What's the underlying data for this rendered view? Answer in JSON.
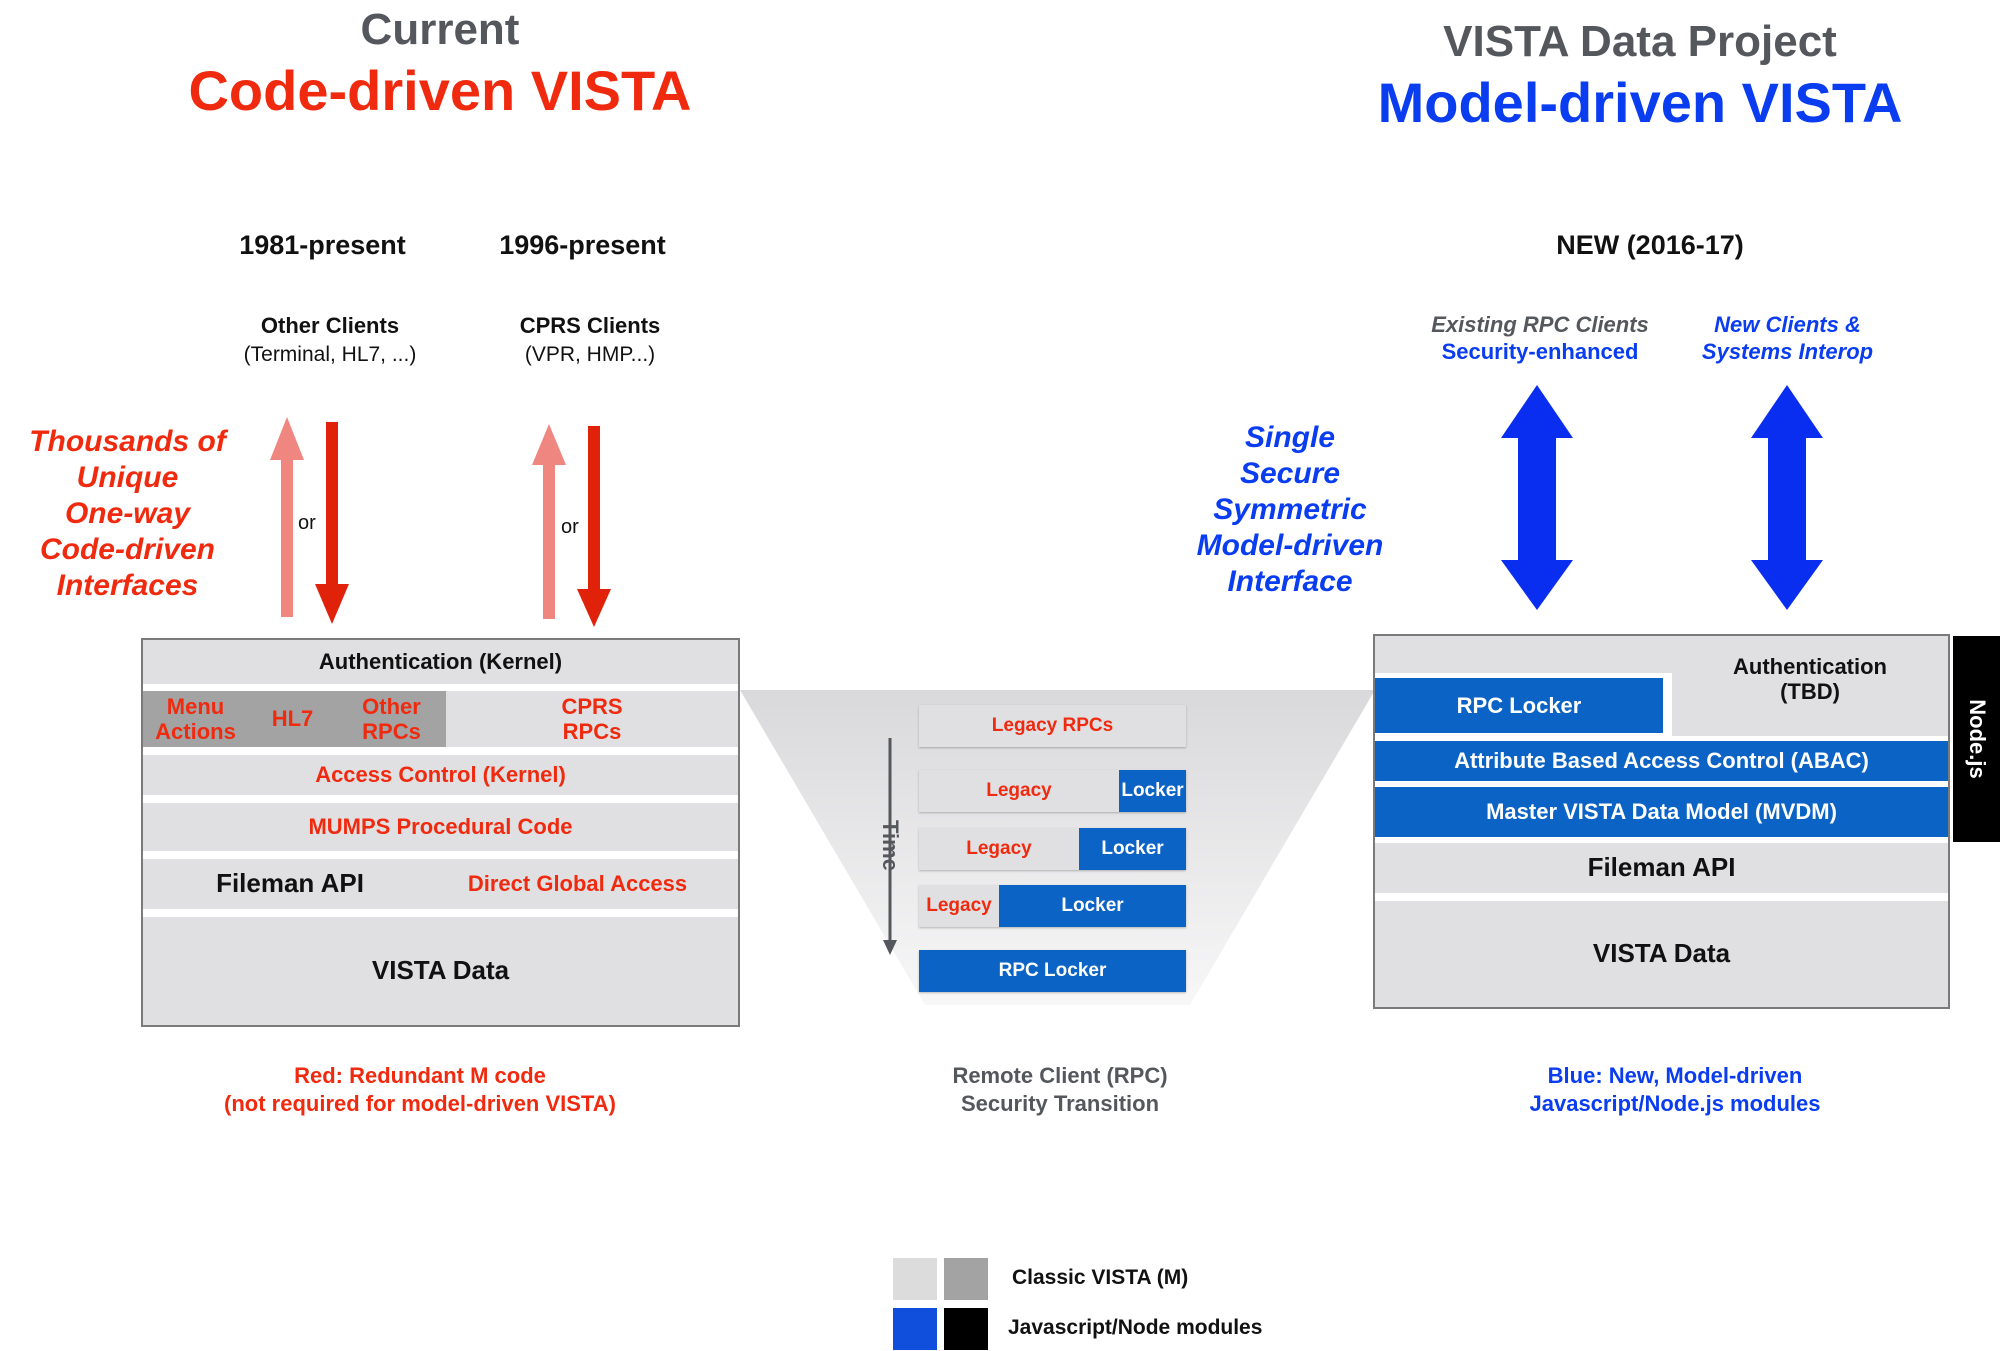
{
  "left": {
    "heading": "Current",
    "title": "Code-driven VISTA",
    "era1": "1981-present",
    "era2": "1996-present",
    "other_clients": {
      "title": "Other Clients",
      "sub": "(Terminal, HL7, ...)"
    },
    "cprs_clients": {
      "title": "CPRS Clients",
      "sub": "(VPR, HMP...)"
    },
    "or1": "or",
    "or2": "or",
    "side_note": [
      "Thousands of",
      "Unique",
      "One-way",
      "Code-driven",
      "Interfaces"
    ],
    "stack": {
      "auth": "Authentication (Kernel)",
      "menu_actions": [
        "Menu",
        "Actions"
      ],
      "hl7": "HL7",
      "other_rpcs": [
        "Other",
        "RPCs"
      ],
      "cprs_rpcs": [
        "CPRS",
        "RPCs"
      ],
      "access_control": "Access Control (Kernel)",
      "mumps": "MUMPS Procedural Code",
      "fileman": "Fileman API",
      "direct_global": "Direct Global Access",
      "vista_data": "VISTA Data"
    },
    "caption": [
      "Red:  Redundant M  code",
      "(not required for model-driven VISTA)"
    ]
  },
  "middle": {
    "time_label": "Time",
    "rows": [
      {
        "legacy": "Legacy RPCs",
        "locker": "",
        "locker_fraction": 0
      },
      {
        "legacy": "Legacy",
        "locker": "Locker",
        "locker_fraction": 0.25
      },
      {
        "legacy": "Legacy",
        "locker": "Locker",
        "locker_fraction": 0.4
      },
      {
        "legacy": "Legacy",
        "locker": "Locker",
        "locker_fraction": 0.7
      },
      {
        "legacy": "",
        "locker": "RPC Locker",
        "locker_fraction": 1
      }
    ],
    "caption": [
      "Remote Client  (RPC)",
      "Security Transition"
    ]
  },
  "right": {
    "heading": "VISTA Data Project",
    "title": "Model-driven VISTA",
    "era": "NEW (2016-17)",
    "existing_clients": [
      "Existing RPC Clients",
      "Security-enhanced"
    ],
    "new_clients": [
      "New Clients &",
      "Systems Interop"
    ],
    "side_note": [
      "Single",
      "Secure",
      "Symmetric",
      "Model-driven",
      "Interface"
    ],
    "stack": {
      "rpc_locker": "RPC Locker",
      "auth": [
        "Authentication",
        "(TBD)"
      ],
      "abac": "Attribute Based Access Control (ABAC)",
      "mvdm": "Master VISTA Data Model (MVDM)",
      "fileman": "Fileman API",
      "vista_data": "VISTA Data",
      "nodejs": "Node.js"
    },
    "caption": [
      "Blue: New, Model-driven",
      "Javascript/Node.js modules"
    ]
  },
  "legend": {
    "classic": "Classic VISTA (M)",
    "js": "Javascript/Node modules"
  },
  "colors": {
    "red": "#f02a0f",
    "blue_text": "#0a3cf0",
    "module_blue": "#0b63c6",
    "light_gray": "#e0e0e2",
    "mid_gray": "#a3a3a3"
  }
}
